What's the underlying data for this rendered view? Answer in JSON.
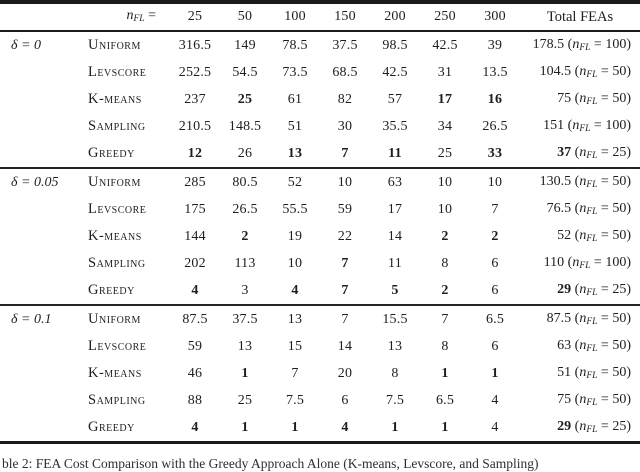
{
  "table": {
    "header": {
      "n_symbol": "n",
      "n_subscript": "FL",
      "equals_sp": " =",
      "columns": [
        "25",
        "50",
        "100",
        "150",
        "200",
        "250",
        "300"
      ],
      "total_label": "Total FEAs"
    },
    "math": {
      "open": "(",
      "n": "n",
      "sub": "FL",
      "eq": " = ",
      "close": ")"
    },
    "sections": [
      {
        "delta": "δ = 0",
        "rows": [
          {
            "method": "Uniform",
            "values": [
              {
                "v": "316.5",
                "b": false
              },
              {
                "v": "149",
                "b": false
              },
              {
                "v": "78.5",
                "b": false
              },
              {
                "v": "37.5",
                "b": false
              },
              {
                "v": "98.5",
                "b": false
              },
              {
                "v": "42.5",
                "b": false
              },
              {
                "v": "39",
                "b": false
              }
            ],
            "total": {
              "v": "178.5",
              "b": false,
              "n": "100"
            }
          },
          {
            "method": "Levscore",
            "values": [
              {
                "v": "252.5",
                "b": false
              },
              {
                "v": "54.5",
                "b": false
              },
              {
                "v": "73.5",
                "b": false
              },
              {
                "v": "68.5",
                "b": false
              },
              {
                "v": "42.5",
                "b": false
              },
              {
                "v": "31",
                "b": false
              },
              {
                "v": "13.5",
                "b": false
              }
            ],
            "total": {
              "v": "104.5",
              "b": false,
              "n": "50"
            }
          },
          {
            "method": "K-means",
            "values": [
              {
                "v": "237",
                "b": false
              },
              {
                "v": "25",
                "b": true
              },
              {
                "v": "61",
                "b": false
              },
              {
                "v": "82",
                "b": false
              },
              {
                "v": "57",
                "b": false
              },
              {
                "v": "17",
                "b": true
              },
              {
                "v": "16",
                "b": true
              }
            ],
            "total": {
              "v": "75",
              "b": false,
              "n": "50"
            }
          },
          {
            "method": "Sampling",
            "values": [
              {
                "v": "210.5",
                "b": false
              },
              {
                "v": "148.5",
                "b": false
              },
              {
                "v": "51",
                "b": false
              },
              {
                "v": "30",
                "b": false
              },
              {
                "v": "35.5",
                "b": false
              },
              {
                "v": "34",
                "b": false
              },
              {
                "v": "26.5",
                "b": false
              }
            ],
            "total": {
              "v": "151",
              "b": false,
              "n": "100"
            }
          },
          {
            "method": "Greedy",
            "values": [
              {
                "v": "12",
                "b": true
              },
              {
                "v": "26",
                "b": false
              },
              {
                "v": "13",
                "b": true
              },
              {
                "v": "7",
                "b": true
              },
              {
                "v": "11",
                "b": true
              },
              {
                "v": "25",
                "b": false
              },
              {
                "v": "33",
                "b": true
              }
            ],
            "total": {
              "v": "37",
              "b": true,
              "n": "25"
            }
          }
        ]
      },
      {
        "delta": "δ = 0.05",
        "rows": [
          {
            "method": "Uniform",
            "values": [
              {
                "v": "285",
                "b": false
              },
              {
                "v": "80.5",
                "b": false
              },
              {
                "v": "52",
                "b": false
              },
              {
                "v": "10",
                "b": false
              },
              {
                "v": "63",
                "b": false
              },
              {
                "v": "10",
                "b": false
              },
              {
                "v": "10",
                "b": false
              }
            ],
            "total": {
              "v": "130.5",
              "b": false,
              "n": "50"
            }
          },
          {
            "method": "Levscore",
            "values": [
              {
                "v": "175",
                "b": false
              },
              {
                "v": "26.5",
                "b": false
              },
              {
                "v": "55.5",
                "b": false
              },
              {
                "v": "59",
                "b": false
              },
              {
                "v": "17",
                "b": false
              },
              {
                "v": "10",
                "b": false
              },
              {
                "v": "7",
                "b": false
              }
            ],
            "total": {
              "v": "76.5",
              "b": false,
              "n": "50"
            }
          },
          {
            "method": "K-means",
            "values": [
              {
                "v": "144",
                "b": false
              },
              {
                "v": "2",
                "b": true
              },
              {
                "v": "19",
                "b": false
              },
              {
                "v": "22",
                "b": false
              },
              {
                "v": "14",
                "b": false
              },
              {
                "v": "2",
                "b": true
              },
              {
                "v": "2",
                "b": true
              }
            ],
            "total": {
              "v": "52",
              "b": false,
              "n": "50"
            }
          },
          {
            "method": "Sampling",
            "values": [
              {
                "v": "202",
                "b": false
              },
              {
                "v": "113",
                "b": false
              },
              {
                "v": "10",
                "b": false
              },
              {
                "v": "7",
                "b": true
              },
              {
                "v": "11",
                "b": false
              },
              {
                "v": "8",
                "b": false
              },
              {
                "v": "6",
                "b": false
              }
            ],
            "total": {
              "v": "110",
              "b": false,
              "n": "100"
            }
          },
          {
            "method": "Greedy",
            "values": [
              {
                "v": "4",
                "b": true
              },
              {
                "v": "3",
                "b": false
              },
              {
                "v": "4",
                "b": true
              },
              {
                "v": "7",
                "b": true
              },
              {
                "v": "5",
                "b": true
              },
              {
                "v": "2",
                "b": true
              },
              {
                "v": "6",
                "b": false
              }
            ],
            "total": {
              "v": "29",
              "b": true,
              "n": "25"
            }
          }
        ]
      },
      {
        "delta": "δ = 0.1",
        "rows": [
          {
            "method": "Uniform",
            "values": [
              {
                "v": "87.5",
                "b": false
              },
              {
                "v": "37.5",
                "b": false
              },
              {
                "v": "13",
                "b": false
              },
              {
                "v": "7",
                "b": false
              },
              {
                "v": "15.5",
                "b": false
              },
              {
                "v": "7",
                "b": false
              },
              {
                "v": "6.5",
                "b": false
              }
            ],
            "total": {
              "v": "87.5",
              "b": false,
              "n": "50"
            }
          },
          {
            "method": "Levscore",
            "values": [
              {
                "v": "59",
                "b": false
              },
              {
                "v": "13",
                "b": false
              },
              {
                "v": "15",
                "b": false
              },
              {
                "v": "14",
                "b": false
              },
              {
                "v": "13",
                "b": false
              },
              {
                "v": "8",
                "b": false
              },
              {
                "v": "6",
                "b": false
              }
            ],
            "total": {
              "v": "63",
              "b": false,
              "n": "50"
            }
          },
          {
            "method": "K-means",
            "values": [
              {
                "v": "46",
                "b": false
              },
              {
                "v": "1",
                "b": true
              },
              {
                "v": "7",
                "b": false
              },
              {
                "v": "20",
                "b": false
              },
              {
                "v": "8",
                "b": false
              },
              {
                "v": "1",
                "b": true
              },
              {
                "v": "1",
                "b": true
              }
            ],
            "total": {
              "v": "51",
              "b": false,
              "n": "50"
            }
          },
          {
            "method": "Sampling",
            "values": [
              {
                "v": "88",
                "b": false
              },
              {
                "v": "25",
                "b": false
              },
              {
                "v": "7.5",
                "b": false
              },
              {
                "v": "6",
                "b": false
              },
              {
                "v": "7.5",
                "b": false
              },
              {
                "v": "6.5",
                "b": false
              },
              {
                "v": "4",
                "b": false
              }
            ],
            "total": {
              "v": "75",
              "b": false,
              "n": "50"
            }
          },
          {
            "method": "Greedy",
            "values": [
              {
                "v": "4",
                "b": true
              },
              {
                "v": "1",
                "b": true
              },
              {
                "v": "1",
                "b": true
              },
              {
                "v": "4",
                "b": true
              },
              {
                "v": "1",
                "b": true
              },
              {
                "v": "1",
                "b": true
              },
              {
                "v": "4",
                "b": false
              }
            ],
            "total": {
              "v": "29",
              "b": true,
              "n": "25"
            }
          }
        ]
      }
    ]
  },
  "caption": {
    "text": "ble 2: FEA Cost Comparison with the Greedy Approach Alone (K-means, Levscore, and Sampling)"
  }
}
